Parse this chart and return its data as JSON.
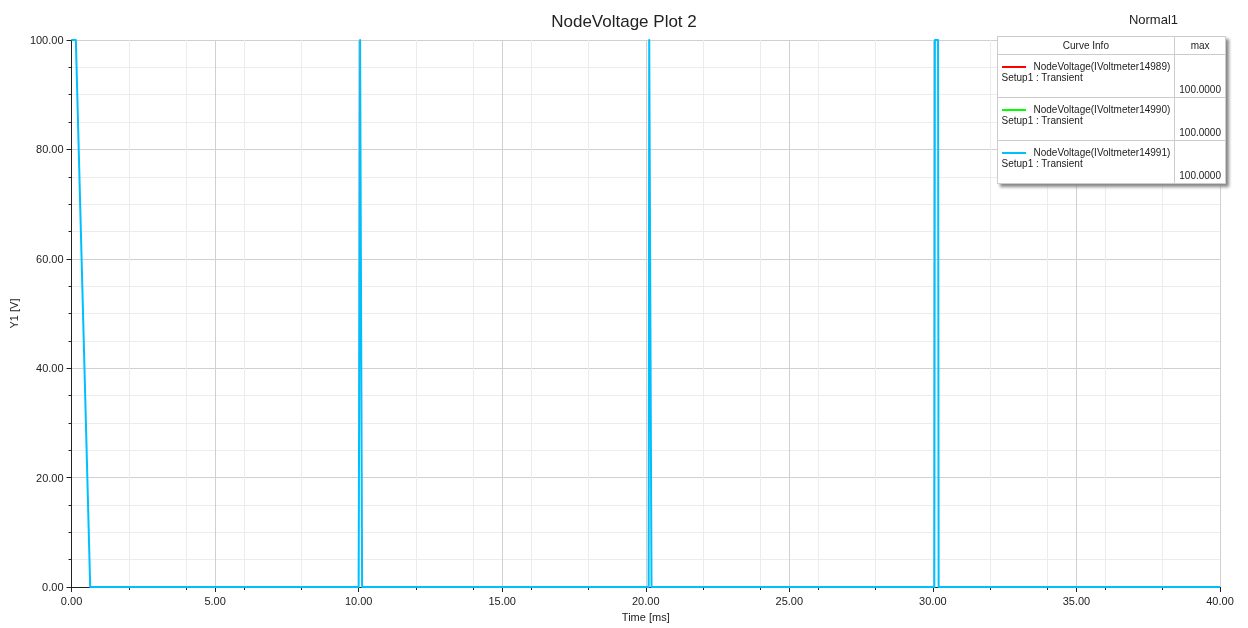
{
  "chart_data": {
    "type": "line",
    "title": "NodeVoltage Plot 2",
    "xlabel": "Time [ms]",
    "ylabel": "Y1 [V]",
    "legend_title": "Curve Info",
    "annotations": [
      "Normal1",
      "max",
      "Setup1 : Transient",
      "Setup1 : Transient",
      "Setup1 : Transient",
      "100.0000",
      "100.0000",
      "100.0000"
    ],
    "x": [
      0,
      0.15,
      0.65,
      10.0,
      10.05,
      10.12,
      20.1,
      20.12,
      20.2,
      30.05,
      30.07,
      30.18,
      30.2,
      40
    ],
    "series": [
      {
        "name": "NodeVoltage(IVoltmeter14989)",
        "color": "#ff0000",
        "values": [
          null,
          null,
          null,
          null,
          null,
          null,
          null,
          null,
          null,
          null,
          null,
          null,
          null,
          null
        ]
      },
      {
        "name": "NodeVoltage(IVoltmeter14990)",
        "color": "#00ff00",
        "values": [
          null,
          null,
          null,
          null,
          null,
          null,
          null,
          null,
          null,
          null,
          null,
          null,
          null,
          null
        ]
      },
      {
        "name": "NodeVoltage(IVoltmeter14991)",
        "color": "#00bfff",
        "values": [
          100,
          100,
          0,
          0,
          100,
          0,
          0,
          100,
          0,
          0,
          100,
          100,
          0,
          0
        ]
      }
    ],
    "xlim": [
      0,
      40
    ],
    "xticks": [
      {
        "value": 0,
        "label": "0.00"
      },
      {
        "value": 5,
        "label": "5.00"
      },
      {
        "value": 10,
        "label": "10.00"
      },
      {
        "value": 15,
        "label": "15.00"
      },
      {
        "value": 20,
        "label": "20.00"
      },
      {
        "value": 25,
        "label": "25.00"
      },
      {
        "value": 30,
        "label": "30.00"
      },
      {
        "value": 35,
        "label": "35.00"
      },
      {
        "value": 40,
        "label": "40.00"
      }
    ],
    "ylim": [
      0,
      100
    ],
    "yticks": [
      {
        "value": 0,
        "label": "0.00"
      },
      {
        "value": 20,
        "label": "20.00"
      },
      {
        "value": 40,
        "label": "40.00"
      },
      {
        "value": 60,
        "label": "60.00"
      },
      {
        "value": 80,
        "label": "80.00"
      },
      {
        "value": 100,
        "label": "100.00"
      }
    ],
    "grid": true,
    "legend": "top right",
    "marker": "none",
    "line_style": "solid"
  }
}
